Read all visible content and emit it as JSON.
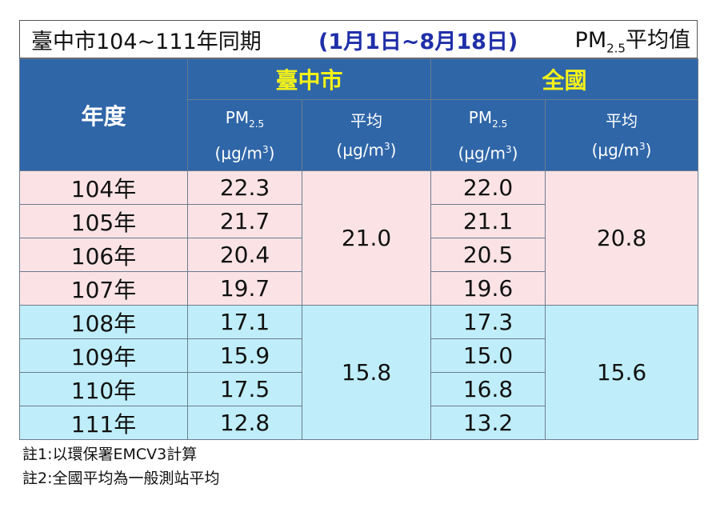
{
  "title": {
    "prefix": "臺中市104~111年同期",
    "range": "(1月1日~8月18日)",
    "pm": "PM",
    "pm_sub": "2.5",
    "suffix": "平均值"
  },
  "header": {
    "year": "年度",
    "group_city": "臺中市",
    "group_nation": "全國",
    "pm_label": "PM",
    "pm_sub": "2.5",
    "avg_label": "平均",
    "unit_prefix": "(μg/m",
    "unit_sup": "3",
    "unit_suffix": ")"
  },
  "rows": [
    {
      "year": "104年",
      "city": "22.3",
      "nation": "22.0"
    },
    {
      "year": "105年",
      "city": "21.7",
      "nation": "21.1"
    },
    {
      "year": "106年",
      "city": "20.4",
      "nation": "20.5"
    },
    {
      "year": "107年",
      "city": "19.7",
      "nation": "19.6"
    },
    {
      "year": "108年",
      "city": "17.1",
      "nation": "17.3"
    },
    {
      "year": "109年",
      "city": "15.9",
      "nation": "15.0"
    },
    {
      "year": "110年",
      "city": "17.5",
      "nation": "16.8"
    },
    {
      "year": "111年",
      "city": "12.8",
      "nation": "13.2"
    }
  ],
  "averages": {
    "city_early": "21.0",
    "nation_early": "20.8",
    "city_late": "15.8",
    "nation_late": "15.6"
  },
  "notes": [
    "註1:以環保署EMCV3計算",
    "註2:全國平均為一般測站平均"
  ],
  "colors": {
    "header_bg": "#2f66a8",
    "group_text": "#f4f21a",
    "early_rows": "#fbe3e5",
    "late_rows": "#bfeefa",
    "range_text": "#1f2fa8"
  }
}
